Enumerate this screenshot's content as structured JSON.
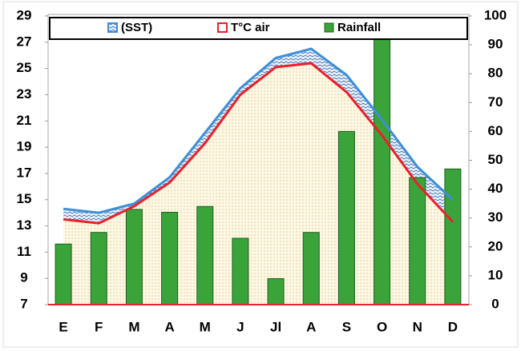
{
  "chart_data": {
    "type": "combo",
    "categories": [
      "E",
      "F",
      "M",
      "A",
      "M",
      "J",
      "Jl",
      "A",
      "S",
      "O",
      "N",
      "D"
    ],
    "series": [
      {
        "name": "(SST)",
        "type": "area",
        "color": "#3d8fd6",
        "values": [
          14.3,
          14.0,
          14.7,
          16.7,
          20.1,
          23.5,
          25.8,
          26.5,
          24.5,
          21.1,
          17.5,
          15.0
        ]
      },
      {
        "name": "T°C air",
        "type": "area",
        "color": "#e8212b",
        "values": [
          13.5,
          13.2,
          14.5,
          16.3,
          19.3,
          23.0,
          25.1,
          25.4,
          23.2,
          19.9,
          16.2,
          13.3
        ]
      },
      {
        "name": "Rainfall",
        "type": "bar",
        "axis": "y2",
        "color": "#3aa33a",
        "values": [
          21,
          25,
          33,
          32,
          34,
          23,
          9,
          25,
          60,
          92,
          44,
          47
        ]
      }
    ],
    "ylim": [
      7,
      29
    ],
    "yticks": [
      7,
      9,
      11,
      13,
      15,
      17,
      19,
      21,
      23,
      25,
      27,
      29
    ],
    "y2lim": [
      0,
      100
    ],
    "y2ticks": [
      0,
      10,
      20,
      30,
      40,
      50,
      60,
      70,
      80,
      90,
      100
    ],
    "legend": "top"
  }
}
